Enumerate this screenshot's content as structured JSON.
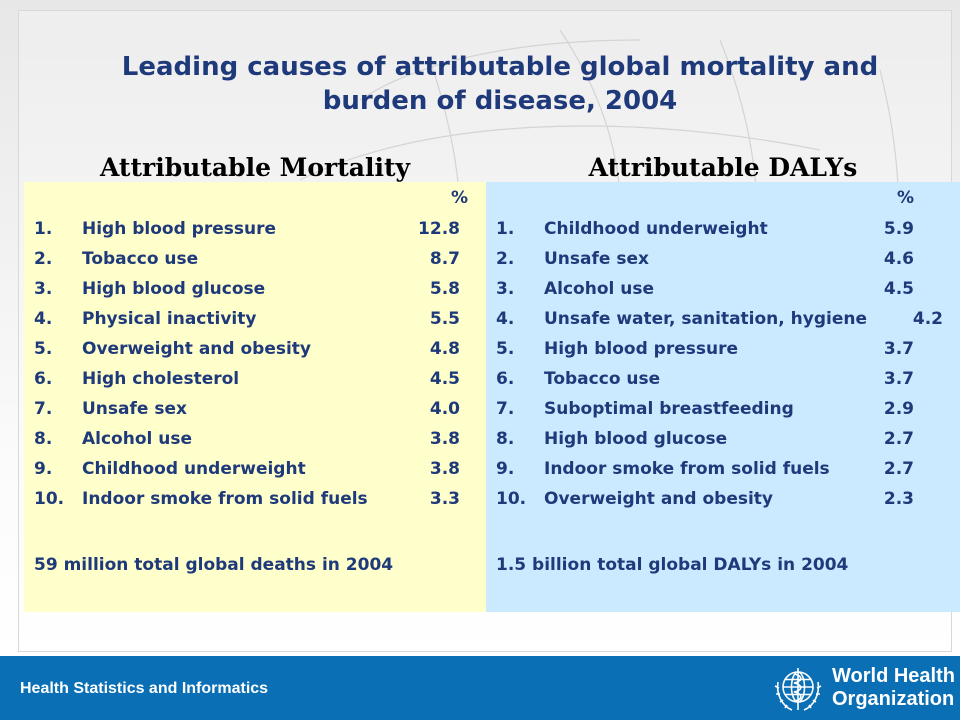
{
  "slide": {
    "title_line1": "Leading causes of attributable global mortality and",
    "title_line2": "burden of disease, 2004"
  },
  "mortality": {
    "heading": "Attributable Mortality",
    "percent_header": "%",
    "items": [
      {
        "num": "1.",
        "label": "High blood pressure",
        "value": "12.8"
      },
      {
        "num": "2.",
        "label": "Tobacco use",
        "value": "8.7"
      },
      {
        "num": "3.",
        "label": "High blood glucose",
        "value": "5.8"
      },
      {
        "num": "4.",
        "label": "Physical inactivity",
        "value": "5.5"
      },
      {
        "num": "5.",
        "label": "Overweight and obesity",
        "value": "4.8"
      },
      {
        "num": "6.",
        "label": "High cholesterol",
        "value": "4.5"
      },
      {
        "num": "7.",
        "label": "Unsafe sex",
        "value": "4.0"
      },
      {
        "num": "8.",
        "label": "Alcohol use",
        "value": "3.8"
      },
      {
        "num": "9.",
        "label": "Childhood underweight",
        "value": "3.8"
      },
      {
        "num": "10.",
        "label": "Indoor smoke from solid fuels",
        "value": "3.3"
      }
    ],
    "total": "59 million total global deaths in 2004"
  },
  "dalys": {
    "heading": "Attributable DALYs",
    "percent_header": "%",
    "items": [
      {
        "num": "1.",
        "label": "Childhood underweight",
        "value": "5.9"
      },
      {
        "num": "2.",
        "label": "Unsafe sex",
        "value": "4.6"
      },
      {
        "num": "3.",
        "label": "Alcohol use",
        "value": "4.5"
      },
      {
        "num": "4.",
        "label": "Unsafe water, sanitation, hygiene",
        "value": "4.2"
      },
      {
        "num": "5.",
        "label": "High blood pressure",
        "value": "3.7"
      },
      {
        "num": "6.",
        "label": "Tobacco use",
        "value": "3.7"
      },
      {
        "num": "7.",
        "label": "Suboptimal breastfeeding",
        "value": "2.9"
      },
      {
        "num": "8.",
        "label": "High blood glucose",
        "value": "2.7"
      },
      {
        "num": "9.",
        "label": "Indoor smoke from solid fuels",
        "value": "2.7"
      },
      {
        "num": "10.",
        "label": "Overweight and obesity",
        "value": "2.3"
      }
    ],
    "total": "1.5 billion total global DALYs in 2004"
  },
  "footer": {
    "department": "Health Statistics and Informatics",
    "org_line1": "World Health",
    "org_line2": "Organization",
    "emblem_icon": "who-emblem-icon"
  },
  "colors": {
    "title": "#1f3a7a",
    "mortality_panel": "#ffffcc",
    "dalys_panel": "#cceaff",
    "footer_bar": "#0a6fb4"
  }
}
